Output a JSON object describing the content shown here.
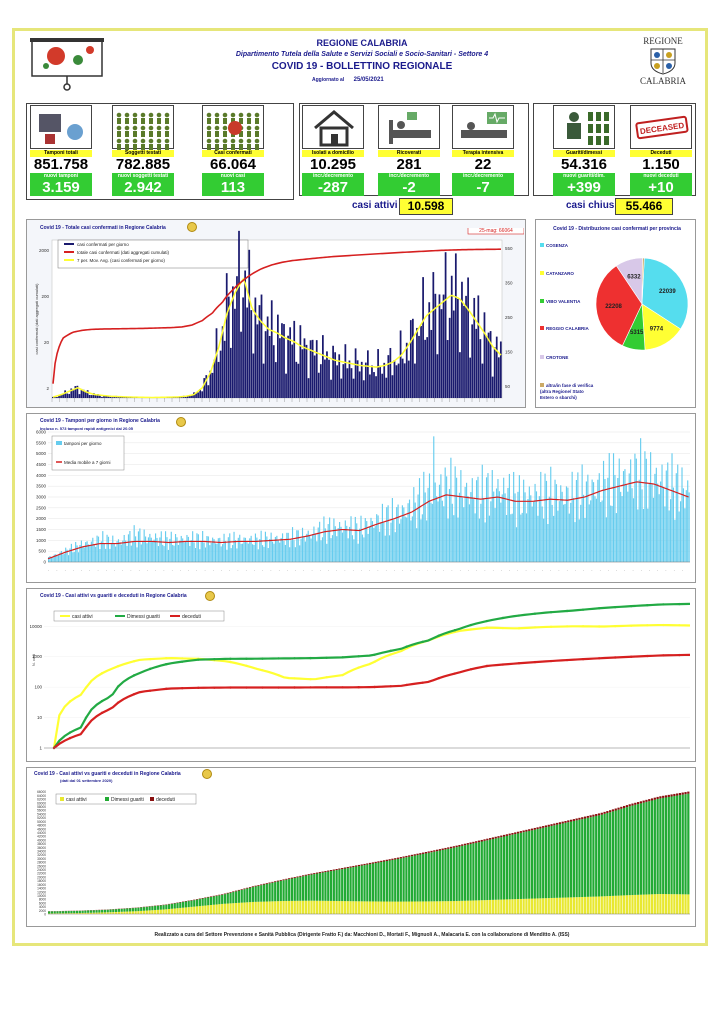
{
  "header": {
    "region": "REGIONE CALABRIA",
    "department": "Dipartimento Tutela della Salute e Servizi Sociali e Socio-Sanitari - Settore 4",
    "bulletin": "COVID 19 - BOLLETTINO REGIONALE",
    "updated_label": "Aggiornato al",
    "updated_date": "25/05/2021",
    "logo_top": "REGIONE",
    "logo_bottom": "CALABRIA"
  },
  "tiles": [
    {
      "label": "Tamponi totali",
      "value": "851.758",
      "sublabel": "nuovi tamponi",
      "subvalue": "3.159",
      "icon": "lab-icon"
    },
    {
      "label": "Soggetti testati",
      "value": "782.885",
      "sublabel": "nuovi soggetti testati",
      "subvalue": "2.942",
      "icon": "people-icon"
    },
    {
      "label": "Casi confermati",
      "value": "66.064",
      "sublabel": "nuovi casi",
      "subvalue": "113",
      "icon": "virus-people-icon"
    },
    {
      "label": "Isolati a domicilio",
      "value": "10.295",
      "sublabel": "incr./decremento",
      "subvalue": "-287",
      "icon": "house-icon"
    },
    {
      "label": "Ricoverati",
      "value": "281",
      "sublabel": "incr./decremento",
      "subvalue": "-2",
      "icon": "bed-icon"
    },
    {
      "label": "Terapia intensiva",
      "value": "22",
      "sublabel": "incr./decremento",
      "subvalue": "-7",
      "icon": "icu-icon"
    },
    {
      "label": "Guariti/dimessi",
      "value": "54.316",
      "sublabel": "nuovi guariti/dim.",
      "subvalue": "+399",
      "icon": "recovered-icon"
    },
    {
      "label": "Deceduti",
      "value": "1.150",
      "sublabel": "nuovi deceduti",
      "subvalue": "+10",
      "icon": "deceased-stamp-icon"
    }
  ],
  "stamp_text": "DECEASED",
  "summary": {
    "active_label": "casi attivi",
    "active_value": "10.598",
    "closed_label": "casi chiusi",
    "closed_value": "55.466"
  },
  "footer": "Realizzato a cura del Settore Prevenzione e Sanità Pubblica (Dirigente Fratto F.) da:  Macchioni D., Mortati F., Mignuoli A., Malacaria E. con la collaborazione di Menditto A. (ISS)",
  "colors": {
    "yellow": "#ffff33",
    "green": "#33cc33",
    "navy": "#1a1a6e",
    "red": "#d62020",
    "cyan": "#66ccee"
  },
  "chart_data": [
    {
      "type": "bar",
      "title": "Covid 19 - Totale casi confermati in Regione Calabria",
      "annotation": "25-mag: 66064",
      "legend": [
        "casi confermati per giorno",
        "totale casi confermati (dati aggregati cumulati)",
        "7 per. Mov. Avg. (casi confermati per giorno)"
      ],
      "y_left_ticks": [
        "2",
        "20",
        "200",
        "2000"
      ],
      "y_right_ticks": [
        "50",
        "150",
        "250",
        "350",
        "550"
      ],
      "ylabel": "casi confermati (dati aggregati cumulati)",
      "series": [
        {
          "name": "casi confermati per giorno",
          "values": [
            5,
            20,
            40,
            60,
            35,
            20,
            15,
            10,
            8,
            6,
            5,
            4,
            3,
            4,
            5,
            6,
            10,
            20,
            60,
            150,
            300,
            500,
            620,
            700,
            520,
            450,
            400,
            380,
            350,
            330,
            300,
            280,
            260,
            240,
            220,
            210,
            200,
            190,
            185,
            180,
            190,
            210,
            250,
            320,
            400,
            480,
            520,
            560,
            600,
            580,
            520,
            450,
            380,
            300,
            250
          ]
        },
        {
          "name": "totale casi confermati",
          "values": [
            100,
            900,
            1200,
            1320,
            1380,
            1400,
            1410,
            1420,
            1430,
            1440,
            1460,
            1480,
            1500,
            1550,
            1700,
            2100,
            3000,
            5000,
            9000,
            14000,
            20000,
            26000,
            31000,
            35000,
            38000,
            40000,
            42000,
            44000,
            46000,
            47500,
            49000,
            50500,
            52000,
            53500,
            55000,
            56500,
            58000,
            59500,
            61000,
            62500,
            63500,
            64300,
            65000,
            65400,
            65700,
            66064
          ]
        }
      ]
    },
    {
      "type": "pie",
      "title": "Covid 19 - Distribuzione casi confermati per provincia",
      "labels": [
        "COSENZA",
        "CATANZARO",
        "VIBO VALENTIA",
        "REGGIO CALABRIA",
        "CROTONE",
        "altra/in fase di verifica (altra Regione/ Stato Estero o sbarchi)"
      ],
      "values": [
        22039,
        9774,
        5315,
        22208,
        6332,
        396
      ],
      "colors": [
        "#55ddee",
        "#ffff33",
        "#33cc33",
        "#ee3030",
        "#d8c8e8",
        "#ccaa66"
      ]
    },
    {
      "type": "bar",
      "title": "Covid 19 - Tamponi per giorno in Regione Calabria",
      "subtitle": "Incluso n. 573  tamponi rapidi antigenici dal 20.05",
      "legend": [
        "tamponi per giorno",
        "Media mobile a 7 giorni"
      ],
      "y_ticks": [
        0,
        500,
        1000,
        1500,
        2000,
        2500,
        3000,
        3500,
        4000,
        4500,
        5000,
        5500,
        6000
      ],
      "series": [
        {
          "name": "tamponi per giorno",
          "values": [
            200,
            500,
            800,
            1000,
            900,
            1200,
            1100,
            1000,
            1050,
            1000,
            950,
            1000,
            1000,
            1050,
            1100,
            1250,
            1500,
            1600,
            1500,
            1900,
            2100,
            2500,
            3200,
            3400,
            3200,
            3100,
            3300,
            2900,
            3000,
            3100,
            3000,
            3200,
            3500,
            3700,
            4000,
            3800,
            3500,
            3200
          ]
        },
        {
          "name": "Media mobile a 7 giorni",
          "values": [
            150,
            450,
            700,
            850,
            850,
            950,
            950,
            900,
            950,
            950,
            900,
            950,
            950,
            1000,
            1050,
            1200,
            1400,
            1500,
            1450,
            1750,
            2000,
            2300,
            2800,
            3100,
            3000,
            2900,
            3000,
            2800,
            2800,
            2900,
            2850,
            3000,
            3300,
            3500,
            3700,
            3600,
            3300,
            3000
          ]
        }
      ]
    },
    {
      "type": "line",
      "title": "Covid 19 - Casi attivi vs guariti e deceduti in Regione Calabria",
      "y_ticks": [
        "1",
        "10",
        "100",
        "1000",
        "10000"
      ],
      "ylabel": "N. casi",
      "series": [
        {
          "name": "casi attivi",
          "values": [
            1,
            60,
            400,
            800,
            900,
            850,
            700,
            400,
            200,
            180,
            250,
            600,
            1500,
            3500,
            7000,
            9000,
            8500,
            9500,
            10000,
            9800,
            10500,
            11000,
            10598
          ]
        },
        {
          "name": "Dimessi guariti",
          "values": [
            1,
            5,
            50,
            300,
            600,
            800,
            850,
            860,
            880,
            900,
            950,
            1100,
            1800,
            3500,
            8000,
            15000,
            22000,
            28000,
            33000,
            40000,
            46000,
            52000,
            54316
          ]
        },
        {
          "name": "deceduti",
          "values": [
            1,
            3,
            20,
            70,
            90,
            95,
            97,
            97,
            97,
            98,
            98,
            100,
            110,
            150,
            300,
            500,
            600,
            700,
            800,
            900,
            1000,
            1100,
            1150
          ]
        }
      ]
    },
    {
      "type": "area",
      "title": "Covid 19 - Casi attivi vs guariti e deceduti in Regione Calabria",
      "subtitle": "(dati dal 01 settembre 2020)",
      "legend": [
        "casi attivi",
        "Dimessi guariti",
        "deceduti"
      ],
      "series": [
        {
          "name": "casi attivi",
          "values": [
            300,
            500,
            900,
            1500,
            2500,
            4000,
            5500,
            6500,
            7000,
            7200,
            7000,
            6800,
            6700,
            6800,
            7000,
            7500,
            8000,
            8500,
            9000,
            9500,
            10200,
            10800,
            10598
          ]
        },
        {
          "name": "Dimessi guariti",
          "values": [
            1100,
            1200,
            1400,
            1800,
            2400,
            3500,
            5000,
            8000,
            11000,
            14000,
            17000,
            20000,
            23000,
            26000,
            29000,
            32000,
            35000,
            38000,
            41000,
            44000,
            48000,
            51500,
            54316
          ]
        },
        {
          "name": "deceduti",
          "values": [
            100,
            110,
            130,
            160,
            200,
            260,
            330,
            400,
            460,
            520,
            580,
            640,
            700,
            760,
            810,
            860,
            900,
            950,
            1000,
            1050,
            1100,
            1130,
            1150
          ]
        }
      ]
    }
  ]
}
